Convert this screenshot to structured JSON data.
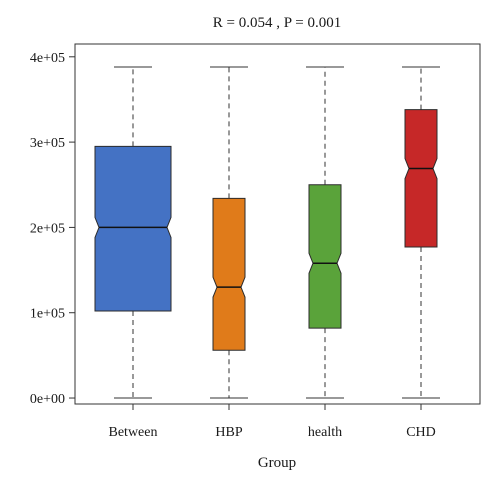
{
  "chart_data": {
    "type": "box",
    "title": "R = 0.054 , P = 0.001",
    "xlabel": "Group",
    "ylabel": "",
    "ylim": [
      -7000,
      415000
    ],
    "yticks": [
      {
        "value": 0,
        "label": "0e+00"
      },
      {
        "value": 100000,
        "label": "1e+05"
      },
      {
        "value": 200000,
        "label": "2e+05"
      },
      {
        "value": 300000,
        "label": "3e+05"
      },
      {
        "value": 400000,
        "label": "4e+05"
      }
    ],
    "grid": false,
    "notched": true,
    "categories": [
      "Between",
      "HBP",
      "health",
      "CHD"
    ],
    "boxes": [
      {
        "category": "Between",
        "min": 0,
        "q1": 102000,
        "median": 200000,
        "q3": 295000,
        "max": 388000,
        "color": "#4472C4"
      },
      {
        "category": "HBP",
        "min": 0,
        "q1": 56000,
        "median": 130000,
        "q3": 234000,
        "max": 388000,
        "color": "#E07B1A"
      },
      {
        "category": "health",
        "min": 0,
        "q1": 82000,
        "median": 158000,
        "q3": 250000,
        "max": 388000,
        "color": "#5AA33A"
      },
      {
        "category": "CHD",
        "min": 0,
        "q1": 177000,
        "median": 269000,
        "q3": 338000,
        "max": 388000,
        "color": "#C62828"
      }
    ]
  }
}
